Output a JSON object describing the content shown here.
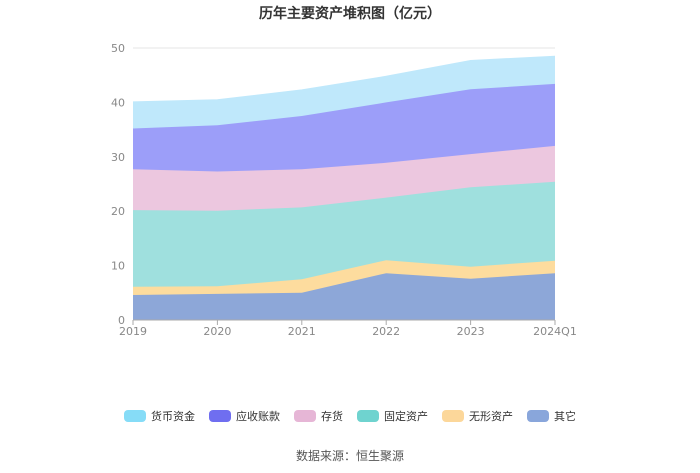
{
  "chart_data": {
    "type": "area",
    "stacked": true,
    "title": "历年主要资产堆积图（亿元）",
    "categories": [
      "2019",
      "2020",
      "2021",
      "2022",
      "2023",
      "2024Q1"
    ],
    "ylim": [
      0,
      50
    ],
    "yticks": [
      0,
      10,
      20,
      30,
      40,
      50
    ],
    "legend_position": "bottom",
    "series": [
      {
        "name": "其它",
        "color": "#8da7d8",
        "values": [
          4.6,
          4.8,
          5.0,
          8.6,
          7.6,
          8.6
        ]
      },
      {
        "name": "无形资产",
        "color": "#fddc9e",
        "values": [
          1.5,
          1.4,
          2.5,
          2.4,
          2.2,
          2.3
        ]
      },
      {
        "name": "固定资产",
        "color": "#9fe0de",
        "values": [
          14.1,
          13.9,
          13.2,
          11.5,
          14.6,
          14.5
        ]
      },
      {
        "name": "存货",
        "color": "#ecc7df",
        "values": [
          7.5,
          7.2,
          7.0,
          6.4,
          6.1,
          6.6
        ]
      },
      {
        "name": "应收账款",
        "color": "#9c9ef9",
        "values": [
          7.5,
          8.5,
          9.8,
          11.1,
          11.9,
          11.4
        ]
      },
      {
        "name": "货币资金",
        "color": "#bfe8fb",
        "values": [
          4.9,
          4.7,
          4.8,
          4.8,
          5.3,
          5.1
        ]
      }
    ],
    "legend_order": [
      "货币资金",
      "应收账款",
      "存货",
      "固定资产",
      "无形资产",
      "其它"
    ],
    "legend_colors": {
      "货币资金": "#86dcf7",
      "应收账款": "#6f6ef0",
      "存货": "#e6b6d6",
      "固定资产": "#6fd3cf",
      "无形资产": "#fcd79a",
      "其它": "#89a6db"
    }
  },
  "footer": {
    "source": "数据来源：恒生聚源"
  }
}
